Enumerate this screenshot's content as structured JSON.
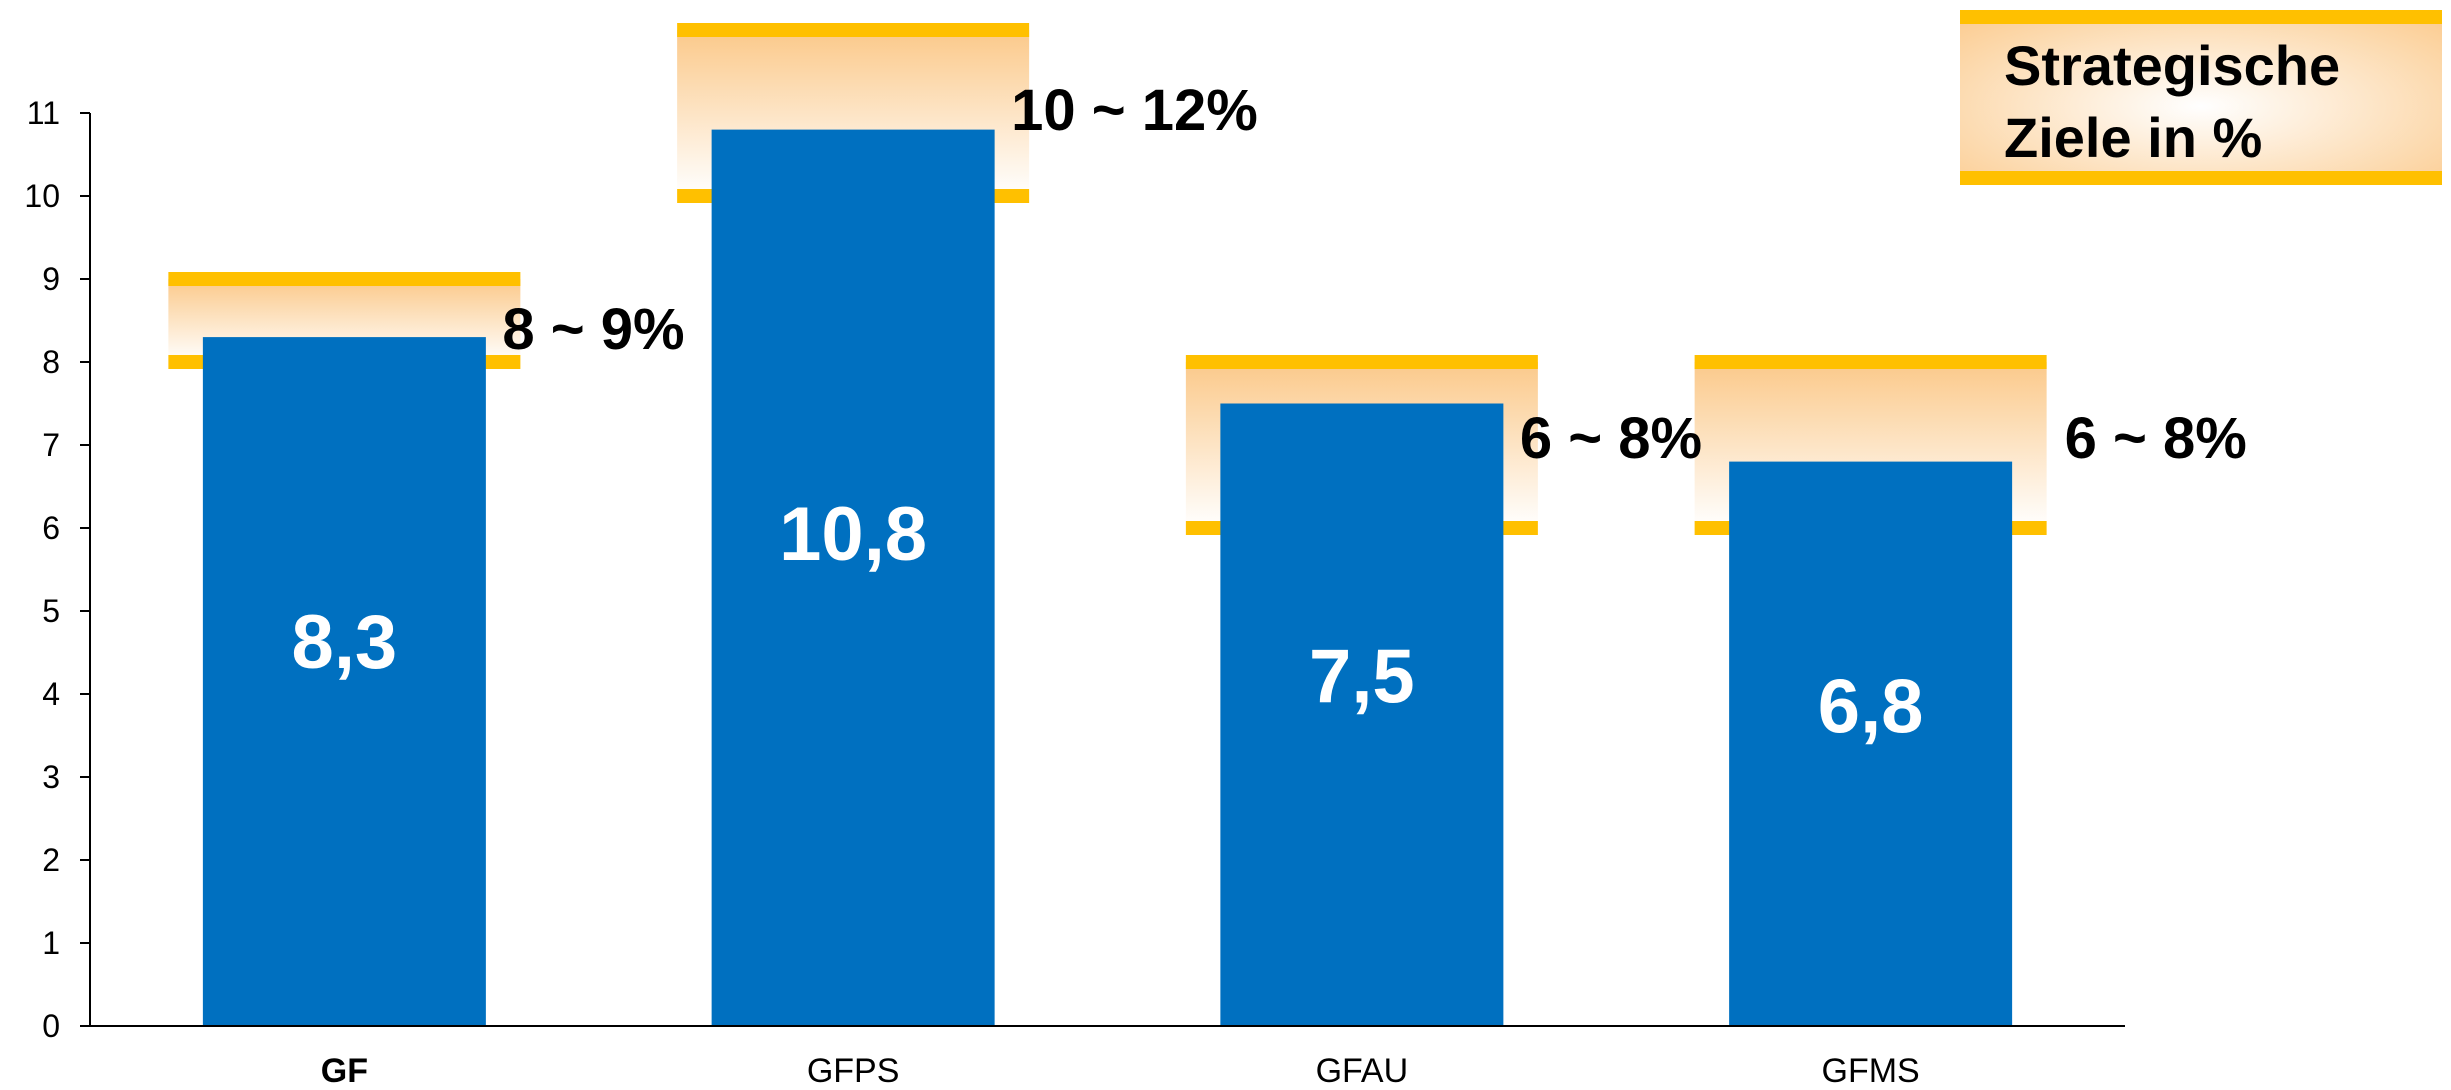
{
  "colors": {
    "bar": "#0070C0",
    "target_band": "#FFC000",
    "target_fill": "#FDD9A0",
    "axis": "#000000"
  },
  "chart_data": {
    "type": "bar",
    "title": "",
    "xlabel": "",
    "ylabel": "",
    "ylim": [
      0,
      11
    ],
    "yticks": [
      0,
      1,
      2,
      3,
      4,
      5,
      6,
      7,
      8,
      9,
      10,
      11
    ],
    "grid": false,
    "categories": [
      "GF",
      "GFPS",
      "GFAU",
      "GFMS"
    ],
    "category_bold": [
      true,
      false,
      false,
      false
    ],
    "values": [
      8.3,
      10.8,
      7.5,
      6.8
    ],
    "value_labels": [
      "8,3",
      "10,8",
      "7,5",
      "6,8"
    ],
    "target_ranges": [
      {
        "low": 8,
        "high": 9,
        "label": "8 ~ 9%"
      },
      {
        "low": 10,
        "high": 12,
        "label": "10 ~ 12%"
      },
      {
        "low": 6,
        "high": 8,
        "label": "6 ~ 8%"
      },
      {
        "low": 6,
        "high": 8,
        "label": "6 ~ 8%"
      }
    ],
    "legend": {
      "position": "top-right",
      "lines": [
        "Strategische",
        "Ziele in %"
      ]
    }
  }
}
